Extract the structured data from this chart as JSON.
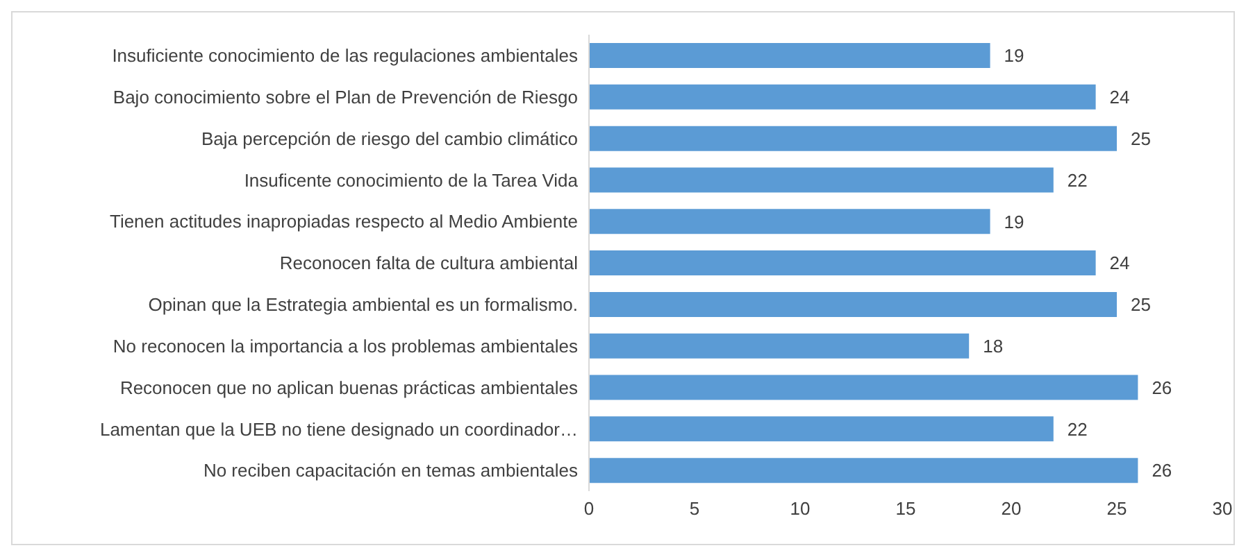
{
  "chart_data": {
    "type": "bar",
    "orientation": "horizontal",
    "categories": [
      "Insuficiente conocimiento de las regulaciones ambientales",
      "Bajo conocimiento sobre el Plan de Prevención de Riesgo",
      "Baja percepción de riesgo del cambio climático",
      "Insuficente conocimiento de la Tarea Vida",
      "Tienen actitudes inapropiadas respecto al Medio Ambiente",
      "Reconocen falta de cultura ambiental",
      "Opinan que la Estrategia ambiental es un formalismo.",
      "No reconocen la importancia a los problemas ambientales",
      "Reconocen que no aplican buenas prácticas ambientales",
      "Lamentan que la UEB no tiene designado un coordinador…",
      "No reciben capacitación en temas ambientales"
    ],
    "values": [
      19,
      24,
      25,
      22,
      19,
      24,
      25,
      18,
      26,
      22,
      26
    ],
    "color": "#5b9bd5",
    "xlim": [
      0,
      30
    ],
    "xticks": [
      0,
      5,
      10,
      15,
      20,
      25,
      30
    ],
    "grid": false,
    "legend": false,
    "data_labels": true
  }
}
